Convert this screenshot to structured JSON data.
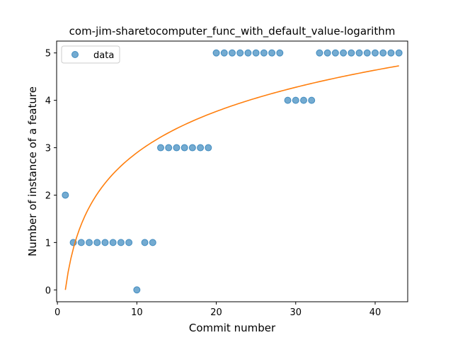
{
  "chart_data": {
    "type": "scatter",
    "title": "com-jim-sharetocomputer_func_with_default_value-logarithm",
    "xlabel": "Commit number",
    "ylabel": "Number of instance of a feature",
    "xlim": [
      -0.1,
      44.1
    ],
    "ylim": [
      -0.25,
      5.25
    ],
    "xticks": [
      0,
      10,
      20,
      30,
      40
    ],
    "yticks": [
      0,
      1,
      2,
      3,
      4,
      5
    ],
    "legend": {
      "placement": "top-left",
      "entries": [
        "data"
      ]
    },
    "series": [
      {
        "name": "data",
        "kind": "scatter",
        "color": "#1f77b4",
        "x": [
          1,
          2,
          3,
          4,
          5,
          6,
          7,
          8,
          9,
          10,
          11,
          12,
          13,
          14,
          15,
          16,
          17,
          18,
          19,
          20,
          21,
          22,
          23,
          24,
          25,
          26,
          27,
          28,
          29,
          30,
          31,
          32,
          33,
          34,
          35,
          36,
          37,
          38,
          39,
          40,
          41,
          42,
          43
        ],
        "y": [
          2,
          1,
          1,
          1,
          1,
          1,
          1,
          1,
          1,
          0,
          1,
          1,
          3,
          3,
          3,
          3,
          3,
          3,
          3,
          5,
          5,
          5,
          5,
          5,
          5,
          5,
          5,
          5,
          4,
          4,
          4,
          4,
          5,
          5,
          5,
          5,
          5,
          5,
          5,
          5,
          5,
          5,
          5
        ]
      },
      {
        "kind": "line",
        "color": "#ff7f0e",
        "fit": {
          "model": "a*ln(x)+b",
          "a": 1.257,
          "b": 0.0
        },
        "x_range": [
          1,
          43
        ]
      }
    ]
  }
}
